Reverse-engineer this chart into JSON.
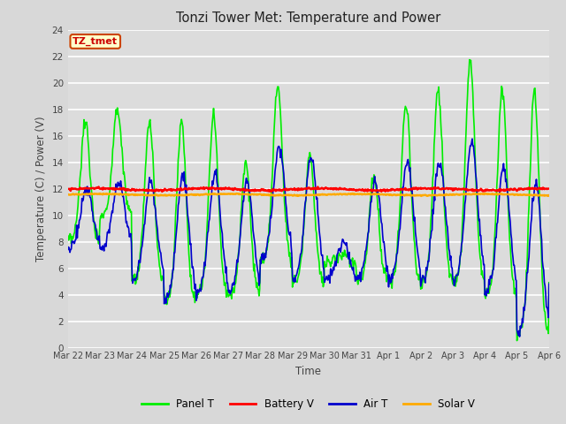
{
  "title": "Tonzi Tower Met: Temperature and Power",
  "xlabel": "Time",
  "ylabel": "Temperature (C) / Power (V)",
  "ylim": [
    0,
    24
  ],
  "yticks": [
    0,
    2,
    4,
    6,
    8,
    10,
    12,
    14,
    16,
    18,
    20,
    22,
    24
  ],
  "bg_color": "#dcdcdc",
  "grid_color": "#ffffff",
  "fig_bg": "#d8d8d8",
  "annotation_text": "TZ_tmet",
  "annotation_bg": "#ffffcc",
  "annotation_border": "#cc4400",
  "annotation_text_color": "#cc0000",
  "legend_entries": [
    "Panel T",
    "Battery V",
    "Air T",
    "Solar V"
  ],
  "legend_colors": [
    "#00ee00",
    "#ff0000",
    "#0000cc",
    "#ffaa00"
  ],
  "x_tick_labels": [
    "Mar 22",
    "Mar 23",
    "Mar 24",
    "Mar 25",
    "Mar 26",
    "Mar 27",
    "Mar 28",
    "Mar 29",
    "Mar 30",
    "Mar 31",
    "Apr 1",
    "Apr 2",
    "Apr 3",
    "Apr 4",
    "Apr 5",
    "Apr 6"
  ],
  "panel_t_color": "#00ee00",
  "battery_v_color": "#ff0000",
  "air_t_color": "#0000cc",
  "solar_v_color": "#ffaa00",
  "panel_t_lw": 1.2,
  "battery_v_lw": 1.8,
  "air_t_lw": 1.2,
  "solar_v_lw": 1.8
}
